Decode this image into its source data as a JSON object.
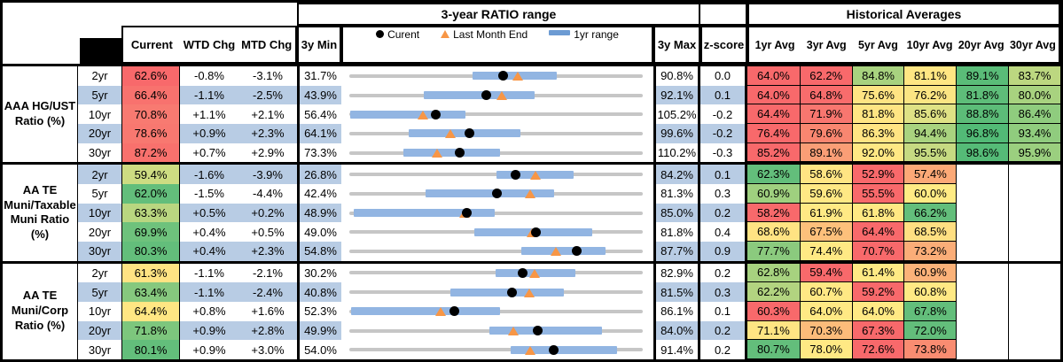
{
  "title_bar": {
    "ratio_range": "3-year RATIO range",
    "historical": "Historical Averages"
  },
  "legend": {
    "current": "Curent",
    "last_month_end": "Last Month End",
    "range_1yr": "1yr range"
  },
  "cols": {
    "current": "Current",
    "wtd": "WTD Chg",
    "mtd": "MTD Chg",
    "min": "3y Min",
    "max": "3y Max",
    "z": "z-score",
    "avgs": [
      "1yr Avg",
      "3yr Avg",
      "5yr Avg",
      "10yr Avg",
      "20yr Avg",
      "30yr Avg"
    ]
  },
  "colors": {
    "stripe_blue": "#B8CCE4",
    "bar_blue": "#92B5E2",
    "line_gray": "#C6C6C6",
    "marker_orange": "#F79646",
    "scale_red": "#F8696B",
    "scale_yellow": "#FFEB84",
    "scale_green": "#63BE7B"
  },
  "chart_data": {
    "type": "table",
    "title": "3-year RATIO range",
    "x_meaning": "ratio (%), markers: current dot, last-month-end triangle (= current - MTD chg), 1yr range bar, 3y min-max line",
    "groups": [
      {
        "label_lines": [
          "AAA HG/UST",
          "Ratio (%)"
        ],
        "rows": [
          {
            "tenor": "2yr",
            "cur": 62.6,
            "curc": "#F8696B",
            "wtd": -0.8,
            "mtd": -3.1,
            "min": 31.7,
            "max": 90.8,
            "z": 0.0,
            "lo": 56.5,
            "hi": 73.5,
            "avgs": [
              [
                64.0,
                "#F8696B"
              ],
              [
                62.2,
                "#F8696B"
              ],
              [
                84.8,
                "#A8D27F"
              ],
              [
                81.1,
                "#FFE683"
              ],
              [
                89.1,
                "#5ABC78"
              ],
              [
                83.7,
                "#BCD780"
              ]
            ]
          },
          {
            "tenor": "5yr",
            "cur": 66.4,
            "curc": "#F8726E",
            "wtd": -1.1,
            "mtd": -2.5,
            "min": 43.9,
            "max": 92.1,
            "z": 0.1,
            "lo": 56.2,
            "hi": 74.4,
            "avgs": [
              [
                64.0,
                "#F8696B"
              ],
              [
                64.8,
                "#F86C6C"
              ],
              [
                75.6,
                "#FFE483"
              ],
              [
                76.2,
                "#FBE583"
              ],
              [
                81.8,
                "#5EBD79"
              ],
              [
                80.0,
                "#A8D27F"
              ]
            ]
          },
          {
            "tenor": "10yr",
            "cur": 70.8,
            "curc": "#F87A71",
            "wtd": 1.1,
            "mtd": 2.1,
            "min": 56.4,
            "max": 105.2,
            "z": -0.2,
            "lo": 56.5,
            "hi": 75.7,
            "avgs": [
              [
                64.4,
                "#F8696B"
              ],
              [
                71.9,
                "#F8766F"
              ],
              [
                81.8,
                "#FFE583"
              ],
              [
                85.6,
                "#DFE285"
              ],
              [
                88.8,
                "#5CBC78"
              ],
              [
                86.4,
                "#8FCC7E"
              ]
            ]
          },
          {
            "tenor": "20yr",
            "cur": 78.6,
            "curc": "#F87870",
            "wtd": 0.9,
            "mtd": 2.3,
            "min": 64.1,
            "max": 99.6,
            "z": -0.2,
            "lo": 71.3,
            "hi": 84.8,
            "avgs": [
              [
                76.4,
                "#F8696B"
              ],
              [
                79.6,
                "#F98670"
              ],
              [
                86.3,
                "#FFE483"
              ],
              [
                94.4,
                "#A9D37F"
              ],
              [
                96.8,
                "#52BA76"
              ],
              [
                93.4,
                "#90CC7E"
              ]
            ]
          },
          {
            "tenor": "30yr",
            "cur": 87.2,
            "curc": "#F8716D",
            "wtd": 0.7,
            "mtd": 2.9,
            "min": 73.3,
            "max": 110.2,
            "z": -0.3,
            "lo": 80.1,
            "hi": 92.3,
            "avgs": [
              [
                85.2,
                "#F8696B"
              ],
              [
                89.1,
                "#FA9E76"
              ],
              [
                92.0,
                "#FFE884"
              ],
              [
                95.5,
                "#C6DA82"
              ],
              [
                98.6,
                "#55BB77"
              ],
              [
                95.9,
                "#9BCF7F"
              ]
            ]
          }
        ]
      },
      {
        "label_lines": [
          "AA TE",
          "Muni/Taxable",
          "Muni Ratio",
          "(%)"
        ],
        "rows": [
          {
            "tenor": "2yr",
            "cur": 59.4,
            "curc": "#CDDC82",
            "wtd": -1.6,
            "mtd": -3.9,
            "min": 26.8,
            "max": 84.2,
            "z": 0.1,
            "lo": 55.6,
            "hi": 70.7,
            "avgs": [
              [
                62.3,
                "#63BE7B"
              ],
              [
                58.6,
                "#FFE583"
              ],
              [
                52.9,
                "#F8696B"
              ],
              [
                57.4,
                "#FCA977"
              ],
              null,
              null
            ]
          },
          {
            "tenor": "5yr",
            "cur": 62.0,
            "curc": "#63BE7B",
            "wtd": -1.5,
            "mtd": -4.4,
            "min": 42.4,
            "max": 81.3,
            "z": 0.3,
            "lo": 52.5,
            "hi": 69.6,
            "avgs": [
              [
                60.9,
                "#9FD07F"
              ],
              [
                59.6,
                "#FFE884"
              ],
              [
                55.5,
                "#F8696B"
              ],
              [
                60.0,
                "#FFEB84"
              ],
              null,
              null
            ]
          },
          {
            "tenor": "10yr",
            "cur": 63.3,
            "curc": "#B9D680",
            "wtd": 0.5,
            "mtd": 0.2,
            "min": 48.9,
            "max": 85.0,
            "z": 0.2,
            "lo": 49.4,
            "hi": 66.8,
            "avgs": [
              [
                58.2,
                "#F8696B"
              ],
              [
                61.9,
                "#FFE984"
              ],
              [
                61.8,
                "#FFE883"
              ],
              [
                66.2,
                "#63BE7B"
              ],
              null,
              null
            ]
          },
          {
            "tenor": "20yr",
            "cur": 69.9,
            "curc": "#6EC27C",
            "wtd": 0.4,
            "mtd": 0.5,
            "min": 49.0,
            "max": 81.8,
            "z": 0.4,
            "lo": 63.0,
            "hi": 76.2,
            "avgs": [
              [
                68.6,
                "#FFE383"
              ],
              [
                67.5,
                "#FDC07B"
              ],
              [
                64.4,
                "#F8696B"
              ],
              [
                68.5,
                "#FFDF82"
              ],
              null,
              null
            ]
          },
          {
            "tenor": "30yr",
            "cur": 80.3,
            "curc": "#63BE7B",
            "wtd": 0.4,
            "mtd": 2.3,
            "min": 54.8,
            "max": 87.7,
            "z": 0.9,
            "lo": 74.1,
            "hi": 83.5,
            "avgs": [
              [
                77.7,
                "#8BCA7E"
              ],
              [
                74.4,
                "#FFE984"
              ],
              [
                70.7,
                "#F8696B"
              ],
              [
                73.2,
                "#FBAD78"
              ],
              null,
              null
            ]
          }
        ]
      },
      {
        "label_lines": [
          "AA TE",
          "Muni/Corp",
          "Ratio (%)"
        ],
        "rows": [
          {
            "tenor": "2yr",
            "cur": 61.3,
            "curc": "#FFE383",
            "wtd": -1.1,
            "mtd": -2.1,
            "min": 30.2,
            "max": 82.9,
            "z": 0.2,
            "lo": 56.5,
            "hi": 70.8,
            "avgs": [
              [
                62.8,
                "#A7D27F"
              ],
              [
                59.4,
                "#F8696B"
              ],
              [
                61.4,
                "#FFE984"
              ],
              [
                60.9,
                "#FBB279"
              ],
              null,
              null
            ]
          },
          {
            "tenor": "5yr",
            "cur": 63.4,
            "curc": "#86C87E",
            "wtd": -1.1,
            "mtd": -2.4,
            "min": 40.8,
            "max": 81.5,
            "z": 0.3,
            "lo": 54.8,
            "hi": 70.6,
            "avgs": [
              [
                62.2,
                "#B2D480"
              ],
              [
                60.7,
                "#FFE884"
              ],
              [
                59.2,
                "#F8696B"
              ],
              [
                60.8,
                "#FFE984"
              ],
              null,
              null
            ]
          },
          {
            "tenor": "10yr",
            "cur": 64.4,
            "curc": "#FFE683",
            "wtd": 0.8,
            "mtd": 1.6,
            "min": 52.3,
            "max": 86.1,
            "z": 0.1,
            "lo": 52.5,
            "hi": 69.7,
            "avgs": [
              [
                60.3,
                "#F8696B"
              ],
              [
                64.0,
                "#FFE984"
              ],
              [
                64.0,
                "#FFE984"
              ],
              [
                67.8,
                "#63BE7B"
              ],
              null,
              null
            ]
          },
          {
            "tenor": "20yr",
            "cur": 71.8,
            "curc": "#7DC67D",
            "wtd": 0.9,
            "mtd": 2.8,
            "min": 49.9,
            "max": 84.0,
            "z": 0.2,
            "lo": 66.2,
            "hi": 79.3,
            "avgs": [
              [
                71.1,
                "#FFE583"
              ],
              [
                70.3,
                "#FCBC7A"
              ],
              [
                67.3,
                "#F8696B"
              ],
              [
                72.0,
                "#63BE7B"
              ],
              null,
              null
            ]
          },
          {
            "tenor": "30yr",
            "cur": 80.1,
            "curc": "#63BE7B",
            "wtd": 0.9,
            "mtd": 3.0,
            "min": 54.0,
            "max": 91.4,
            "z": 0.2,
            "lo": 74.6,
            "hi": 88.1,
            "avgs": [
              [
                80.7,
                "#63BE7B"
              ],
              [
                78.0,
                "#FFE984"
              ],
              [
                72.6,
                "#F8696B"
              ],
              [
                73.8,
                "#F98C71"
              ],
              null,
              null
            ]
          }
        ]
      }
    ]
  }
}
